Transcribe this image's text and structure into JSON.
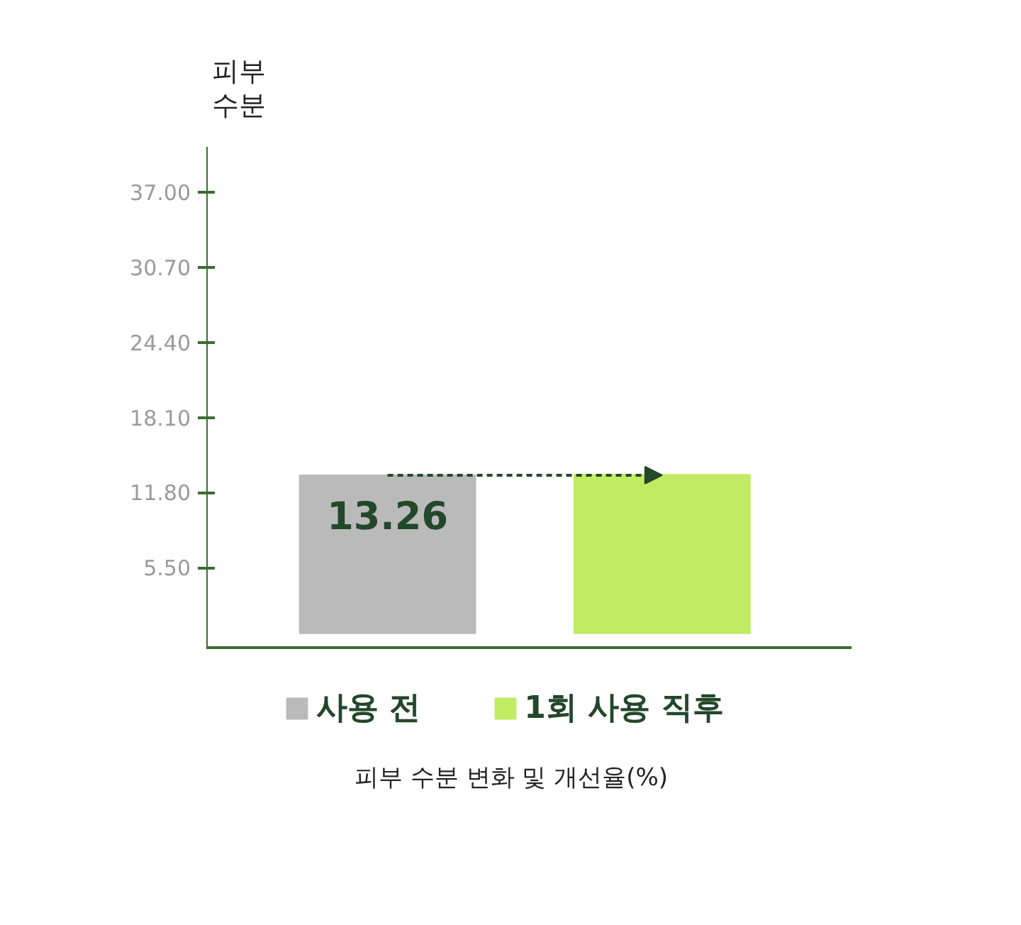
{
  "chart_data": {
    "type": "bar",
    "ylabel": "피부 수분",
    "categories": [
      null,
      null
    ],
    "series": [
      {
        "name": "사용 전",
        "color": "#bababa",
        "values": [
          13.26,
          null
        ],
        "value_labels": [
          "13.26",
          null
        ]
      },
      {
        "name": "1회 사용 직후",
        "color": "#c1eb62",
        "values": [
          null,
          13.3
        ]
      }
    ],
    "ylim": [
      -1.2,
      40.8
    ],
    "yticks": [
      {
        "value": 5.5,
        "label": "5.50"
      },
      {
        "value": 11.8,
        "label": "11.80"
      },
      {
        "value": 18.1,
        "label": "18.10"
      },
      {
        "value": 24.4,
        "label": "24.40"
      },
      {
        "value": 30.7,
        "label": "30.70"
      },
      {
        "value": 37,
        "label": "37.00"
      }
    ],
    "legend": "bottom",
    "annotations": [
      "피부 수분 변화 및 개선율(%)"
    ]
  }
}
